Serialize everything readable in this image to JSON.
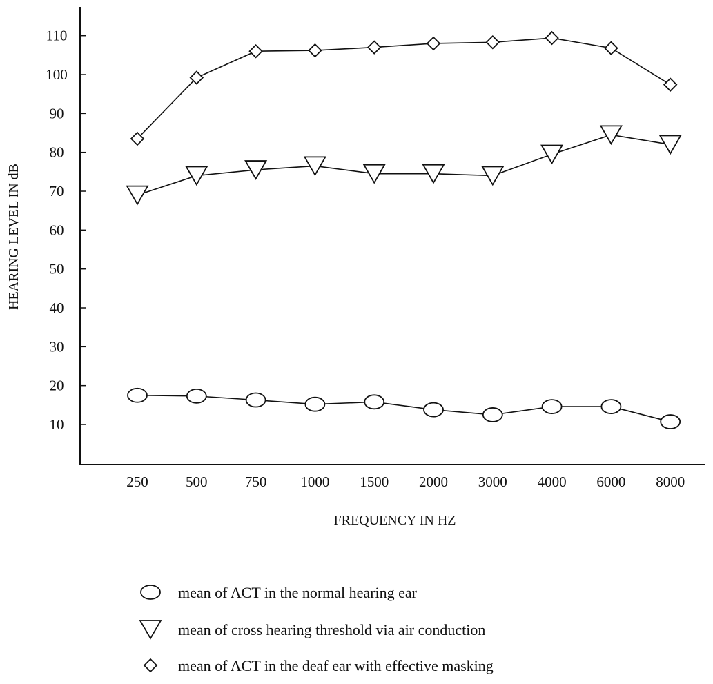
{
  "chart_data": {
    "type": "line",
    "title": "",
    "xlabel": "FREQUENCY IN HZ",
    "ylabel": "HEARING LEVEL IN dB",
    "categories": [
      "250",
      "500",
      "750",
      "1000",
      "1500",
      "2000",
      "3000",
      "4000",
      "6000",
      "8000"
    ],
    "y_ticks": [
      10,
      20,
      30,
      40,
      50,
      60,
      70,
      80,
      90,
      100,
      110
    ],
    "ylim": [
      0,
      115
    ],
    "grid": false,
    "legend_position": "bottom",
    "series": [
      {
        "name": "mean of ACT in the normal hearing ear",
        "marker": "circle",
        "values": [
          17.5,
          17.3,
          16.3,
          15.2,
          15.8,
          13.8,
          12.5,
          14.6,
          14.6,
          10.7
        ]
      },
      {
        "name": "mean of cross hearing threshold via air conduction",
        "marker": "triangle-down",
        "values": [
          69,
          74,
          75.5,
          76.5,
          74.5,
          74.5,
          74,
          79.5,
          84.5,
          82
        ]
      },
      {
        "name": "mean of ACT in the deaf ear with effective masking",
        "marker": "diamond",
        "values": [
          83.5,
          99.2,
          106,
          106.2,
          107,
          108,
          108.3,
          109.4,
          106.8,
          97.4
        ]
      }
    ]
  },
  "colors": {
    "ink": "#111111",
    "marker_fill": "#ffffff"
  }
}
